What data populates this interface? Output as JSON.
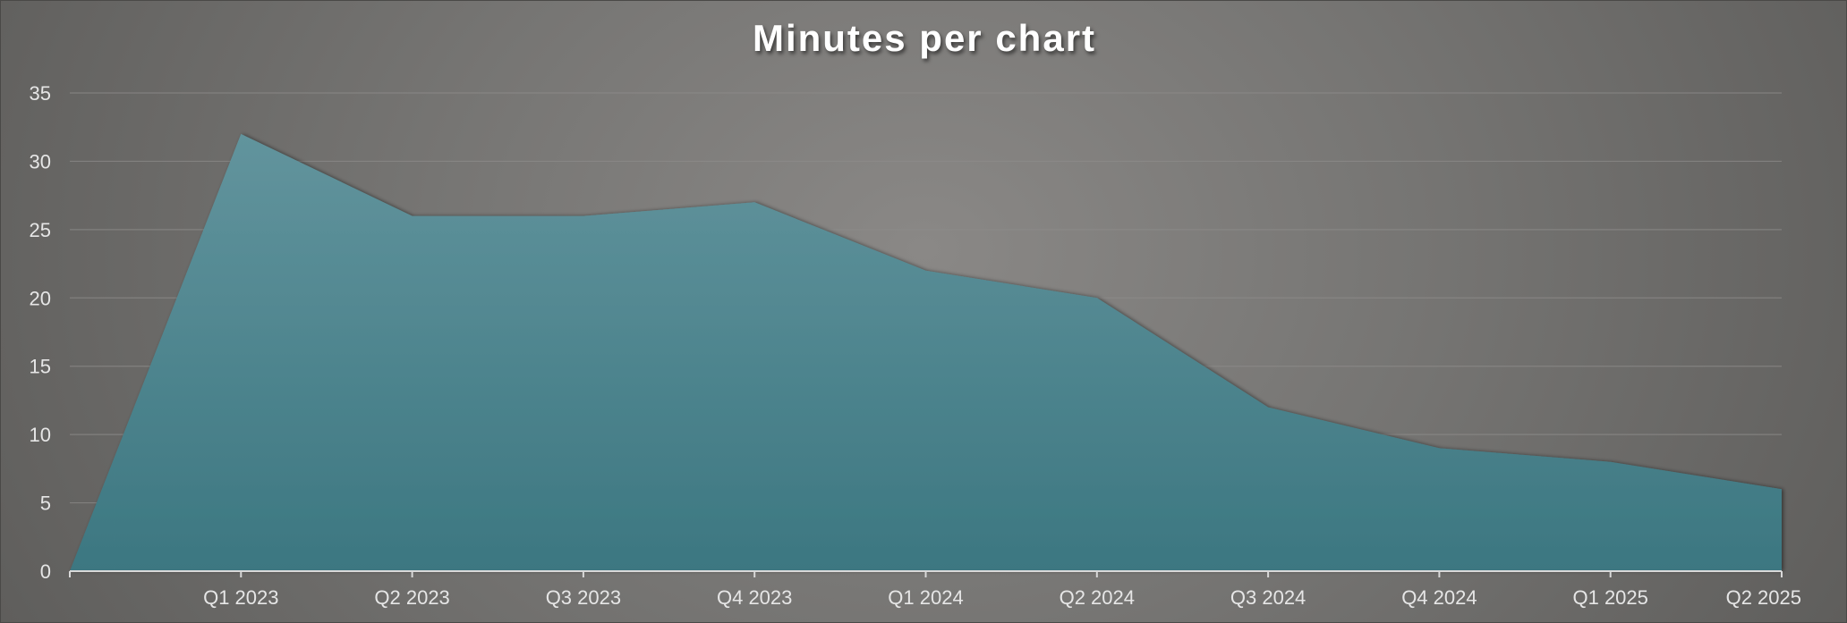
{
  "chart_data": {
    "type": "area",
    "title": "Minutes per chart",
    "xlabel": "",
    "ylabel": "",
    "categories": [
      "",
      "Q1 2023",
      "Q2 2023",
      "Q3 2023",
      "Q4 2023",
      "Q1 2024",
      "Q2 2024",
      "Q3 2024",
      "Q4 2024",
      "Q1 2025",
      "Q2 2025"
    ],
    "values": [
      0,
      32,
      26,
      26,
      27,
      22,
      20,
      12,
      9,
      8,
      6
    ],
    "ylim": [
      0,
      35
    ],
    "yticks": [
      0,
      5,
      10,
      15,
      20,
      25,
      30,
      35
    ],
    "grid": true,
    "legend": "none",
    "colors": {
      "fill_top": "#62949d",
      "fill_bottom": "#3c7781",
      "gridline": "#8d8c8a",
      "axis": "#d9d9d9"
    }
  }
}
